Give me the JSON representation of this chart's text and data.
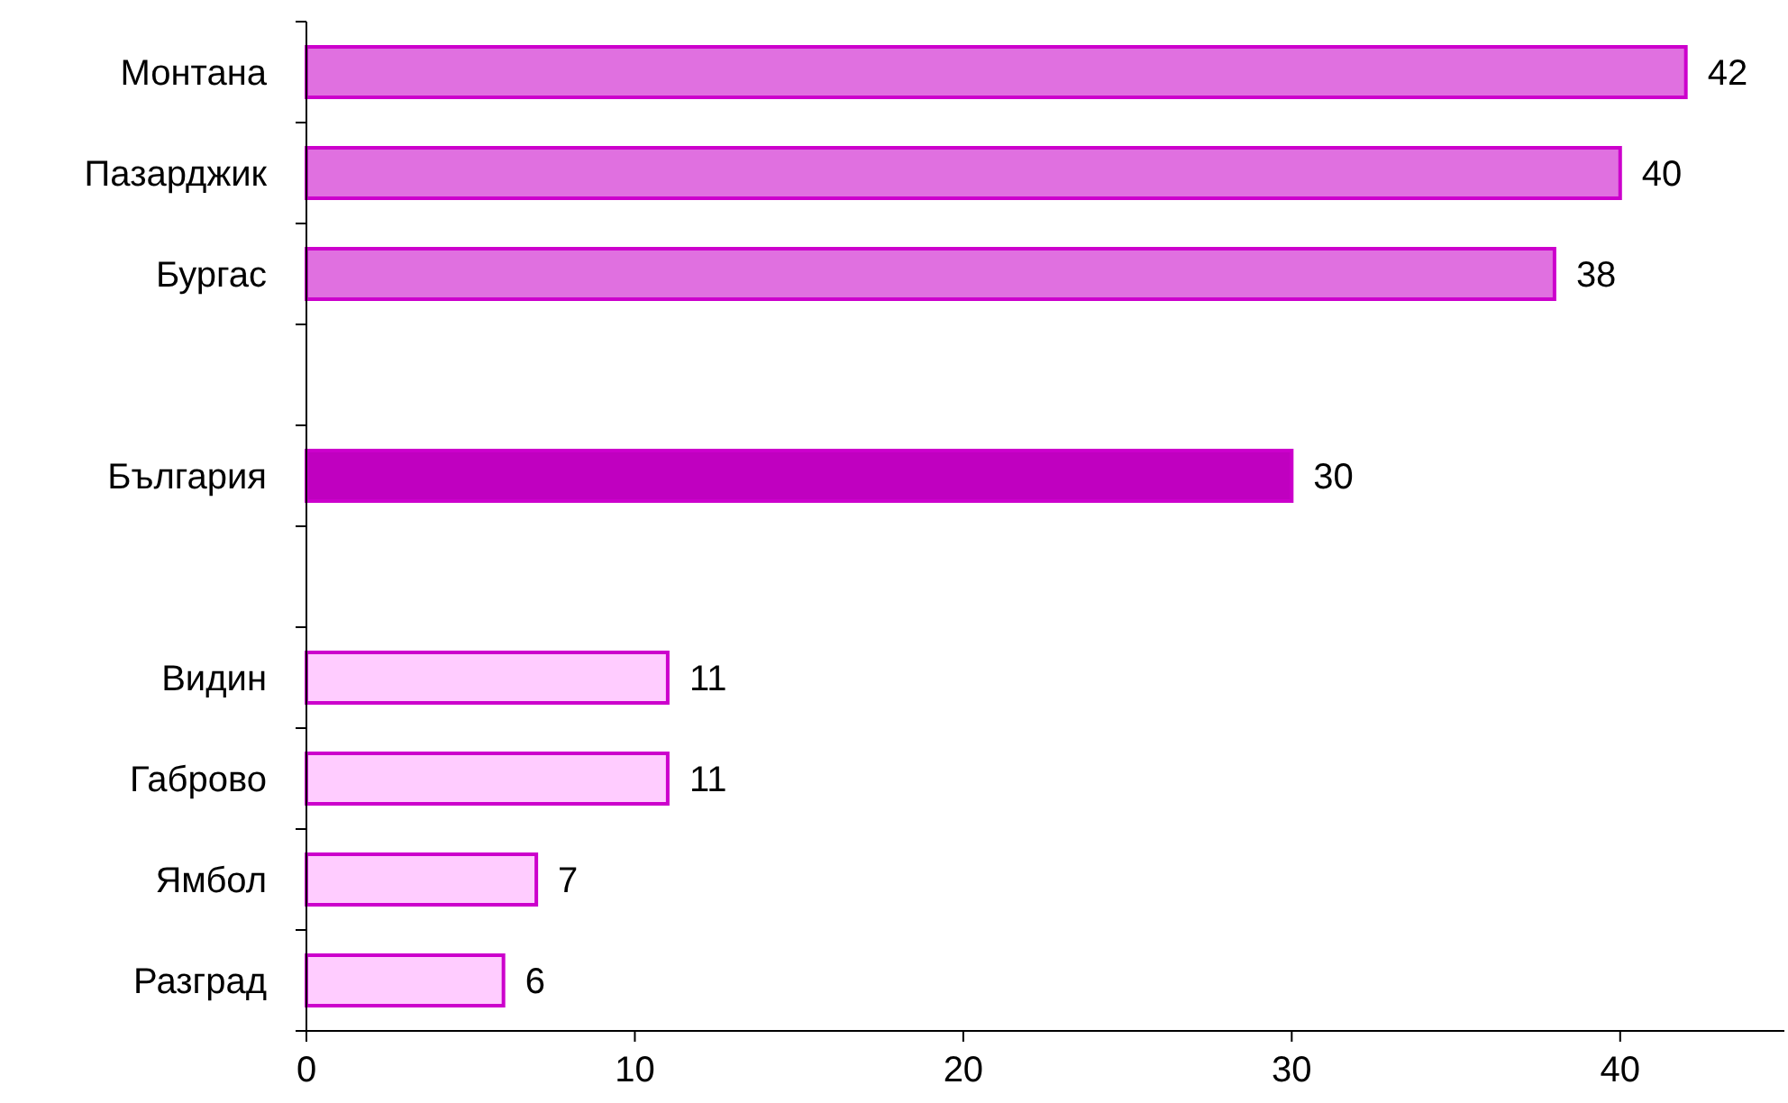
{
  "chart_data": {
    "type": "bar",
    "orientation": "horizontal",
    "categories": [
      "Монтана",
      "Пазарджик",
      "Бургас",
      null,
      "България",
      null,
      "Видин",
      "Габрово",
      "Ямбол",
      "Разград"
    ],
    "values": [
      42,
      40,
      38,
      null,
      30,
      null,
      11,
      11,
      7,
      6
    ],
    "colors": [
      "#e070e0",
      "#e070e0",
      "#e070e0",
      null,
      "#c000c0",
      null,
      "#ffccff",
      "#ffccff",
      "#ffccff",
      "#ffccff"
    ],
    "xlim": [
      0,
      45
    ],
    "xticks": [
      0,
      10,
      20,
      30,
      40
    ],
    "data_labels": true
  }
}
